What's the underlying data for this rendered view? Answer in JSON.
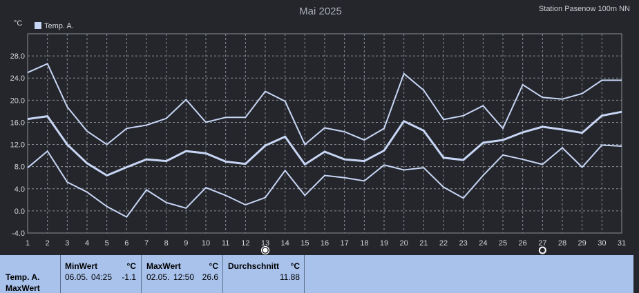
{
  "header": {
    "title": "Mai 2025",
    "station": "Station Pasenow 100m NN",
    "unit": "°C"
  },
  "chart_data": {
    "type": "line",
    "title": "Mai 2025",
    "ylabel": "°C",
    "xlabel": "",
    "legend": [
      "Temp. A."
    ],
    "legend_placement": "top-left",
    "grid": true,
    "xlim": [
      1,
      31
    ],
    "ylim": [
      -4,
      32
    ],
    "yticks": [
      "-4.0",
      "0.0",
      "4.0",
      "8.0",
      "12.0",
      "16.0",
      "20.0",
      "24.0",
      "28.0"
    ],
    "x": [
      1,
      2,
      3,
      4,
      5,
      6,
      7,
      8,
      9,
      10,
      11,
      12,
      13,
      14,
      15,
      16,
      17,
      18,
      19,
      20,
      21,
      22,
      23,
      24,
      25,
      26,
      27,
      28,
      29,
      30,
      31
    ],
    "series": [
      {
        "name": "Temp. A.",
        "role": "max",
        "values": [
          25.0,
          26.6,
          18.8,
          14.4,
          12.0,
          14.9,
          15.5,
          16.7,
          20.1,
          16.0,
          16.9,
          16.9,
          21.6,
          19.8,
          12.0,
          15.0,
          14.3,
          12.8,
          14.9,
          24.8,
          21.8,
          16.5,
          17.2,
          19.0,
          14.9,
          22.8,
          20.5,
          20.2,
          21.2,
          23.6,
          23.6
        ]
      },
      {
        "name": "Temp. A.",
        "role": "mean",
        "values": [
          16.6,
          17.1,
          12.0,
          8.6,
          6.4,
          7.9,
          9.3,
          9.0,
          10.8,
          10.4,
          8.9,
          8.5,
          11.8,
          13.4,
          8.4,
          10.7,
          9.3,
          9.0,
          10.9,
          16.2,
          14.5,
          9.6,
          9.2,
          12.3,
          12.8,
          14.2,
          15.2,
          14.7,
          14.1,
          17.2,
          17.9
        ]
      },
      {
        "name": "Temp. A.",
        "role": "min",
        "values": [
          7.8,
          10.8,
          5.2,
          3.4,
          0.8,
          -1.1,
          3.8,
          1.5,
          0.5,
          4.2,
          2.8,
          1.1,
          2.4,
          7.3,
          2.8,
          6.4,
          6.0,
          5.4,
          8.3,
          7.4,
          7.8,
          4.3,
          2.3,
          6.4,
          10.1,
          9.3,
          8.4,
          11.4,
          7.9,
          11.9,
          11.7
        ]
      }
    ],
    "colors": {
      "line": "#c8d6f6",
      "axis": "#8a8d93",
      "text": "#d5d8dd"
    },
    "markers": [
      {
        "day": 13,
        "icon": "full-moon-icon"
      },
      {
        "day": 27,
        "icon": "new-moon-icon"
      }
    ]
  },
  "stats": {
    "series_label": "Temp. A.",
    "series_sub": "MaxWert",
    "min": {
      "header": "MinWert",
      "unit": "°C",
      "date": "06.05.",
      "time": "04:25",
      "value": "-1.1"
    },
    "max": {
      "header": "MaxWert",
      "unit": "°C",
      "date": "02.05.",
      "time": "12:50",
      "value": "26.6"
    },
    "avg": {
      "header": "Durchschnitt",
      "unit": "°C",
      "value": "11.88"
    }
  }
}
